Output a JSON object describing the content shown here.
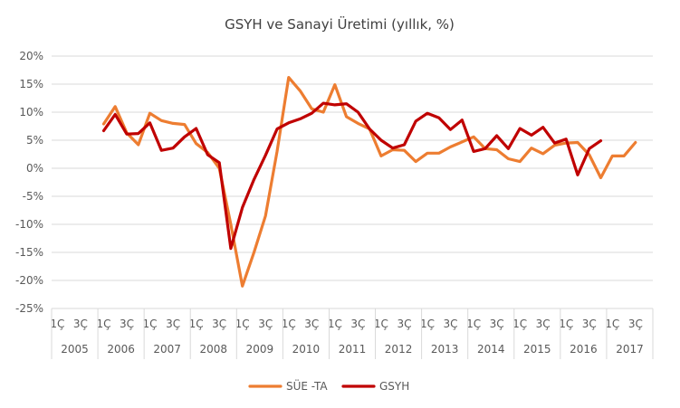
{
  "chart_data": {
    "type": "line",
    "title": "GSYH ve Sanayi Üretimi (yıllık, %)",
    "xlabel": "",
    "ylabel": "",
    "ylim": [
      -25,
      20
    ],
    "y_ticks": [
      "20%",
      "15%",
      "10%",
      "5%",
      "0%",
      "-5%",
      "-10%",
      "-15%",
      "-20%",
      "-25%"
    ],
    "quarter_tick_labels": [
      "1Ç",
      "3Ç"
    ],
    "years": [
      "2005",
      "2006",
      "2007",
      "2008",
      "2009",
      "2010",
      "2011",
      "2012",
      "2013",
      "2014",
      "2015",
      "2016",
      "2017"
    ],
    "quarters_per_year": 4,
    "legend_position": "bottom",
    "grid": "horizontal",
    "series": [
      {
        "name": "SÜE -TA",
        "color": "#ED7D31",
        "start_index": 4,
        "values": [
          7.9,
          11.0,
          6.3,
          4.2,
          9.8,
          8.5,
          8.0,
          7.8,
          4.4,
          2.8,
          0.0,
          -10.0,
          -21.0,
          -15.0,
          -8.5,
          3.0,
          16.2,
          13.8,
          10.6,
          10.0,
          14.9,
          9.2,
          8.0,
          7.0,
          2.2,
          3.3,
          3.2,
          1.2,
          2.7,
          2.7,
          3.8,
          4.7,
          5.6,
          3.5,
          3.3,
          1.7,
          1.2,
          3.6,
          2.6,
          4.1,
          4.5,
          4.6,
          2.4,
          -1.7,
          2.2,
          2.2,
          4.6
        ]
      },
      {
        "name": "GSYH",
        "color": "#C00000",
        "start_index": 4,
        "values": [
          6.7,
          9.6,
          6.1,
          6.2,
          8.1,
          3.2,
          3.6,
          5.6,
          7.1,
          2.4,
          1.0,
          -14.3,
          -7.0,
          -2.0,
          2.3,
          7.0,
          8.1,
          8.8,
          9.8,
          11.6,
          11.3,
          11.5,
          10.0,
          7.0,
          5.0,
          3.6,
          4.2,
          8.4,
          9.8,
          9.0,
          6.9,
          8.6,
          3.0,
          3.5,
          5.8,
          3.5,
          7.1,
          5.9,
          7.3,
          4.5,
          5.2,
          -1.2,
          3.5,
          4.9
        ]
      }
    ]
  }
}
